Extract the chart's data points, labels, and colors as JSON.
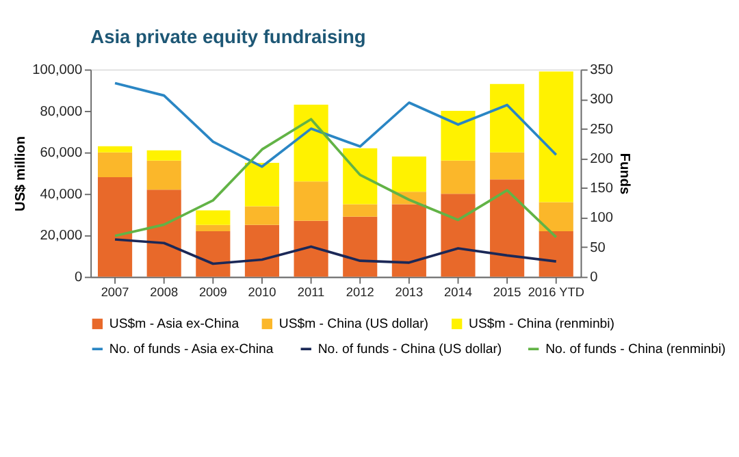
{
  "chart_data": {
    "type": "bar",
    "title": "Asia private equity fundraising",
    "ylabel": "US$ million",
    "y2label": "Funds",
    "categories": [
      "2007",
      "2008",
      "2009",
      "2010",
      "2011",
      "2012",
      "2013",
      "2014",
      "2015",
      "2016 YTD"
    ],
    "stacked": true,
    "grid": false,
    "legend": "bottom",
    "marker": "none",
    "line_style": "solid",
    "ylim": [
      0,
      100000
    ],
    "yticks": [
      {
        "value": 0,
        "label": "0"
      },
      {
        "value": 20000,
        "label": "20,000"
      },
      {
        "value": 40000,
        "label": "40,000"
      },
      {
        "value": 60000,
        "label": "60,000"
      },
      {
        "value": 80000,
        "label": "80,000"
      },
      {
        "value": 100000,
        "label": "100,000"
      }
    ],
    "y2lim": [
      0,
      350
    ],
    "y2ticks": [
      0,
      50,
      100,
      150,
      200,
      250,
      300,
      350
    ],
    "series": [
      {
        "name": "US$m - Asia ex-China",
        "color": "#e8692a",
        "values": [
          48000,
          42000,
          22000,
          25000,
          27000,
          29000,
          35000,
          40000,
          47000,
          22000
        ]
      },
      {
        "name": "US$m - China (US dollar)",
        "color": "#fbb72a",
        "values": [
          12000,
          14000,
          3000,
          9000,
          19000,
          6000,
          6000,
          16000,
          13000,
          14000
        ]
      },
      {
        "name": "US$m - China (renminbi)",
        "color": "#fff200",
        "values": [
          3000,
          5000,
          7000,
          21000,
          37000,
          27000,
          17000,
          24000,
          33000,
          63000
        ]
      },
      {
        "name": "No. of funds - Asia ex-China",
        "type": "line",
        "axis": "y2",
        "color": "#2a86c4",
        "values": [
          327,
          306,
          228,
          186,
          250,
          220,
          294,
          257,
          290,
          206
        ]
      },
      {
        "name": "No. of funds - China (US dollar)",
        "type": "line",
        "axis": "y2",
        "color": "#1b2857",
        "values": [
          63,
          57,
          22,
          29,
          51,
          27,
          24,
          48,
          36,
          26
        ]
      },
      {
        "name": "No. of funds - China (renminbi)",
        "type": "line",
        "axis": "y2",
        "color": "#62b346",
        "values": [
          69,
          88,
          129,
          215,
          266,
          172,
          130,
          96,
          146,
          67
        ]
      }
    ]
  }
}
